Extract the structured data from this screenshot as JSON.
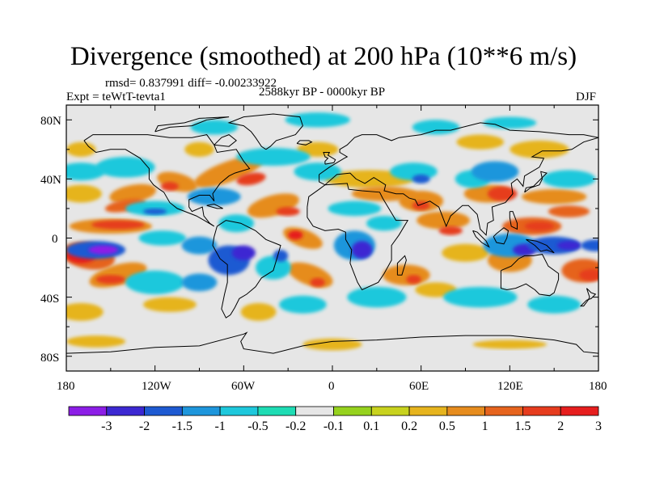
{
  "title": "Divergence (smoothed) at 200 hPa (10**6 m/s)",
  "stats": "rmsd= 0.837991 diff= -0.00233922",
  "period": "2588kyr BP - 0000kyr BP",
  "experiment": "Expt = teWtT-tevta1",
  "season": "DJF",
  "lat_labels": [
    "80N",
    "40N",
    "0",
    "40S",
    "80S"
  ],
  "lon_labels": [
    "180",
    "120W",
    "60W",
    "0",
    "60E",
    "120E",
    "180"
  ],
  "colorbar": {
    "labels": [
      "-3",
      "-2",
      "-1.5",
      "-1",
      "-0.5",
      "-0.2",
      "-0.1",
      "0.1",
      "0.2",
      "0.5",
      "1",
      "1.5",
      "2",
      "3"
    ],
    "colors": [
      "#8c1ee6",
      "#3c28d2",
      "#1e5ad2",
      "#1e96dc",
      "#1ec8dc",
      "#1edcb4",
      "#e6e6e6",
      "#96d21e",
      "#c8d21e",
      "#e6b41e",
      "#e68c1e",
      "#e6641e",
      "#e63c1e",
      "#e61e1e"
    ]
  },
  "map_background": "#e6e6e6"
}
